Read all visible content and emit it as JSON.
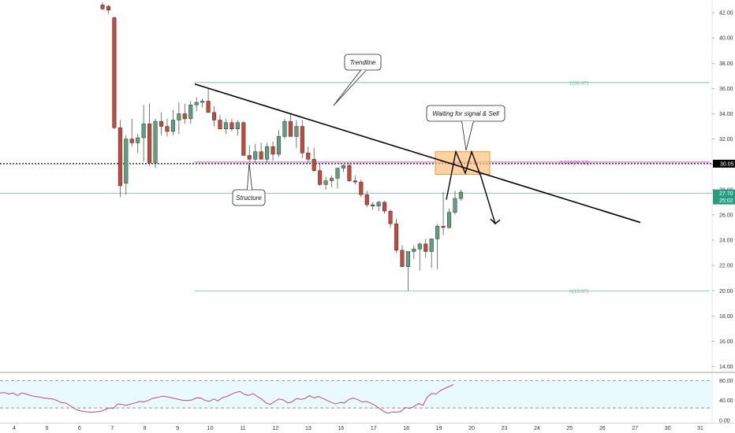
{
  "chart_data": {
    "type": "candlestick",
    "price_axis": {
      "ticks": [
        "42.00",
        "40.00",
        "38.00",
        "36.00",
        "34.00",
        "32.00",
        "30.00",
        "28.00",
        "26.00",
        "24.00",
        "22.00",
        "20.00",
        "18.00",
        "16.00",
        "14.00"
      ],
      "range": [
        13.6,
        43.0
      ]
    },
    "rsi_axis": {
      "ticks": [
        "80.00",
        "40.00",
        "0.00"
      ],
      "range": [
        -5,
        95
      ]
    },
    "x_axis": {
      "ticks": [
        "4",
        "5",
        "6",
        "7",
        "8",
        "9",
        "10",
        "11",
        "12",
        "13",
        "16",
        "17",
        "18",
        "19",
        "20",
        "23",
        "24",
        "25",
        "26",
        "27",
        "30",
        "31"
      ]
    },
    "candles": [
      [
        42.6,
        42.8,
        42.2,
        42.3
      ],
      [
        42.5,
        42.6,
        41.9,
        42.2
      ],
      [
        41.6,
        41.7,
        32.8,
        32.9
      ],
      [
        32.9,
        33.5,
        27.4,
        28.3
      ],
      [
        28.5,
        32.3,
        27.6,
        32.0
      ],
      [
        32.0,
        33.6,
        31.4,
        31.7
      ],
      [
        31.7,
        32.4,
        30.9,
        32.1
      ],
      [
        32.1,
        34.7,
        30.2,
        33.2
      ],
      [
        33.2,
        34.8,
        29.9,
        30.1
      ],
      [
        30.1,
        33.6,
        29.7,
        33.4
      ],
      [
        33.4,
        34.1,
        32.3,
        33.0
      ],
      [
        33.0,
        33.6,
        32.2,
        32.6
      ],
      [
        32.6,
        34.3,
        32.3,
        33.5
      ],
      [
        33.5,
        34.9,
        32.4,
        34.0
      ],
      [
        34.0,
        34.8,
        33.2,
        33.6
      ],
      [
        33.6,
        35.0,
        33.2,
        34.7
      ],
      [
        34.7,
        35.3,
        34.2,
        34.9
      ],
      [
        34.9,
        35.2,
        34.5,
        35.0
      ],
      [
        35.0,
        36.0,
        34.3,
        34.1
      ],
      [
        34.1,
        34.6,
        33.0,
        33.5
      ],
      [
        33.5,
        33.9,
        32.8,
        32.8
      ],
      [
        32.8,
        33.6,
        32.4,
        33.3
      ],
      [
        33.3,
        33.6,
        32.6,
        32.8
      ],
      [
        32.8,
        33.5,
        32.3,
        33.3
      ],
      [
        33.3,
        33.4,
        30.8,
        30.7
      ],
      [
        30.7,
        31.5,
        30.2,
        30.4
      ],
      [
        30.4,
        31.6,
        30.1,
        31.0
      ],
      [
        31.0,
        31.7,
        30.4,
        30.4
      ],
      [
        30.4,
        31.7,
        30.1,
        31.4
      ],
      [
        31.4,
        31.8,
        30.3,
        30.8
      ],
      [
        30.8,
        32.7,
        30.6,
        32.2
      ],
      [
        32.2,
        33.6,
        32.0,
        33.4
      ],
      [
        33.4,
        34.0,
        32.2,
        32.2
      ],
      [
        32.2,
        33.5,
        31.3,
        33.0
      ],
      [
        33.0,
        33.5,
        30.5,
        30.9
      ],
      [
        30.9,
        31.4,
        30.1,
        30.4
      ],
      [
        30.4,
        31.3,
        29.4,
        29.5
      ],
      [
        29.5,
        30.0,
        28.3,
        28.4
      ],
      [
        28.4,
        29.0,
        28.0,
        28.7
      ],
      [
        28.7,
        29.1,
        28.2,
        28.9
      ],
      [
        28.9,
        29.5,
        28.1,
        29.7
      ],
      [
        29.7,
        30.0,
        29.4,
        29.9
      ],
      [
        29.9,
        30.1,
        28.6,
        28.7
      ],
      [
        28.7,
        29.1,
        28.4,
        28.6
      ],
      [
        28.6,
        28.8,
        27.4,
        27.6
      ],
      [
        27.6,
        27.9,
        26.6,
        26.8
      ],
      [
        26.8,
        27.0,
        26.4,
        26.7
      ],
      [
        26.7,
        27.1,
        26.3,
        27.0
      ],
      [
        27.0,
        27.1,
        26.1,
        26.3
      ],
      [
        26.3,
        26.4,
        25.0,
        25.3
      ],
      [
        25.3,
        25.7,
        23.0,
        23.2
      ],
      [
        23.2,
        23.6,
        21.9,
        21.9
      ],
      [
        21.9,
        23.0,
        20.0,
        23.1
      ],
      [
        23.1,
        23.6,
        22.5,
        23.3
      ],
      [
        23.3,
        23.8,
        21.6,
        23.7
      ],
      [
        23.7,
        24.1,
        22.6,
        23.1
      ],
      [
        23.1,
        24.1,
        21.8,
        24.1
      ],
      [
        24.1,
        25.3,
        21.7,
        25.1
      ],
      [
        25.1,
        27.8,
        24.4,
        25.0
      ],
      [
        25.0,
        26.5,
        24.9,
        26.2
      ],
      [
        26.2,
        27.9,
        26.0,
        27.3
      ],
      [
        27.3,
        28.0,
        27.1,
        27.8
      ]
    ],
    "rsi": [
      55,
      56,
      53,
      55,
      50,
      55,
      53,
      50,
      48,
      47,
      45,
      44,
      43,
      40,
      36,
      35,
      30,
      24,
      20,
      18,
      17,
      16,
      17,
      18,
      21,
      25,
      24,
      33,
      32,
      30,
      33,
      35,
      38,
      37,
      40,
      44,
      46,
      48,
      48,
      46,
      44,
      42,
      40,
      40,
      41,
      45,
      45,
      40,
      38,
      43,
      39,
      46,
      48,
      52,
      56,
      58,
      53,
      50,
      54,
      48,
      43,
      35,
      32,
      38,
      43,
      41,
      35,
      37,
      44,
      42,
      44,
      50,
      45,
      48,
      44,
      40,
      36,
      33,
      36,
      35,
      42,
      45,
      42,
      37,
      38,
      35,
      30,
      24,
      18,
      14,
      17,
      16,
      18,
      26,
      24,
      28,
      34,
      30,
      47,
      54,
      53,
      60,
      64,
      68,
      72
    ],
    "fib_levels": [
      {
        "label": "1(36.47)",
        "value": 36.47
      },
      {
        "label": "0.618(30.17)",
        "value": 30.17
      },
      {
        "label": "0(19.97)",
        "value": 19.97
      }
    ],
    "current_price": "30.05",
    "price_badges": [
      "27.70",
      "25:02"
    ],
    "annotations": [
      "Trendline",
      "Waiting for signal & Sell",
      "Structure"
    ],
    "colors": {
      "up": "#5f9f7c",
      "down": "#c4493b",
      "fib_main": "#6bb89a",
      "fib_mid": "#cc33cc",
      "rsi_line": "#c44880",
      "rsi_band": "#e8fafd",
      "box_fill": "#ffc27a",
      "box_border": "#ee9933",
      "badge": "#279d80",
      "price_line": "#000000"
    }
  }
}
